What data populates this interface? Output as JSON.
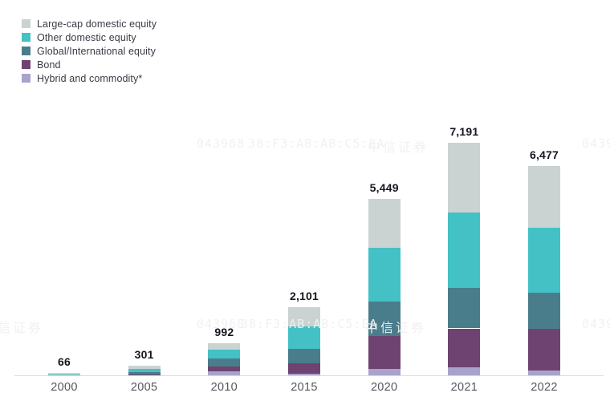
{
  "watermark": {
    "serial": "043968",
    "mac": "38:F3:AB:AB:C5:EA",
    "brand": "中信证券"
  },
  "colors": {
    "axis_line": "#d9dde0",
    "value_label": "#16161f",
    "year_label": "#55565f",
    "legend_text": "#3a3b45"
  },
  "chart_data": {
    "type": "bar",
    "stacked": true,
    "title": "",
    "xlabel": "",
    "ylabel": "",
    "grid": false,
    "legend_position": "top-left",
    "value_labels": true,
    "ylim": [
      0,
      7500
    ],
    "categories": [
      "2000",
      "2005",
      "2010",
      "2015",
      "2020",
      "2021",
      "2022"
    ],
    "totals": [
      66,
      301,
      992,
      2101,
      5449,
      7191,
      6477
    ],
    "total_labels": [
      "66",
      "301",
      "992",
      "2,101",
      "5,449",
      "7,191",
      "6,477"
    ],
    "series": [
      {
        "name": "Large-cap domestic equity",
        "color": "#cbd2d2",
        "values": [
          50,
          100,
          195,
          590,
          1497,
          2165,
          1912
        ]
      },
      {
        "name": "Other domestic equity",
        "color": "#44c1c5",
        "values": [
          10,
          100,
          270,
          685,
          1664,
          2315,
          2005
        ]
      },
      {
        "name": "Global/International equity",
        "color": "#4a7d8b",
        "values": [
          4,
          65,
          250,
          445,
          1065,
          1260,
          1114
        ]
      },
      {
        "name": "Bond",
        "color": "#6f4371",
        "values": [
          1,
          25,
          143,
          340,
          1031,
          1205,
          1297
        ]
      },
      {
        "name": "Hybrid and commodity*",
        "color": "#a7a3cd",
        "values": [
          1,
          11,
          134,
          41,
          192,
          246,
          149
        ]
      }
    ]
  }
}
